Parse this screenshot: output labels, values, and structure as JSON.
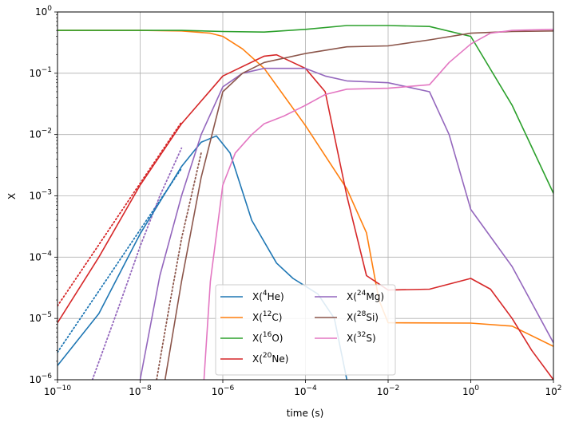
{
  "chart_data": {
    "type": "line",
    "xlabel": "time (s)",
    "ylabel": "X",
    "xscale": "log",
    "yscale": "log",
    "xlim": [
      1e-10,
      100
    ],
    "ylim": [
      1e-06,
      1
    ],
    "grid": true,
    "legend": {
      "placement": "lower center",
      "columns": 2
    },
    "x_ticks": [
      {
        "value": 1e-10,
        "base": "10",
        "exp": "−10"
      },
      {
        "value": 1e-08,
        "base": "10",
        "exp": "−8"
      },
      {
        "value": 1e-06,
        "base": "10",
        "exp": "−6"
      },
      {
        "value": 0.0001,
        "base": "10",
        "exp": "−4"
      },
      {
        "value": 0.01,
        "base": "10",
        "exp": "−2"
      },
      {
        "value": 1,
        "base": "10",
        "exp": "0"
      },
      {
        "value": 100,
        "base": "10",
        "exp": "2"
      }
    ],
    "y_ticks": [
      {
        "value": 1e-06,
        "base": "10",
        "exp": "−6"
      },
      {
        "value": 1e-05,
        "base": "10",
        "exp": "−5"
      },
      {
        "value": 0.0001,
        "base": "10",
        "exp": "−4"
      },
      {
        "value": 0.001,
        "base": "10",
        "exp": "−3"
      },
      {
        "value": 0.01,
        "base": "10",
        "exp": "−2"
      },
      {
        "value": 0.1,
        "base": "10",
        "exp": "−1"
      },
      {
        "value": 1,
        "base": "10",
        "exp": "0"
      }
    ],
    "series": [
      {
        "name": "X(4He)",
        "legend_pre": "X(",
        "legend_sup": "4",
        "legend_post": "He)",
        "color": "#1f77b4",
        "x": [
          1e-10,
          1e-09,
          1e-08,
          1e-07,
          3e-07,
          7e-07,
          1.5e-06,
          5e-06,
          2e-05,
          5e-05,
          0.0002,
          0.0005,
          0.001
        ],
        "y": [
          1.7e-06,
          1.2e-05,
          0.00024,
          0.003,
          0.0075,
          0.0095,
          0.005,
          0.0004,
          8e-05,
          4.5e-05,
          2.5e-05,
          1e-05,
          1e-06
        ]
      },
      {
        "name": "X(12C)",
        "legend_pre": "X(",
        "legend_sup": "12",
        "legend_post": "C)",
        "color": "#ff7f0e",
        "x": [
          1e-10,
          1e-08,
          1e-07,
          5e-07,
          1e-06,
          3e-06,
          1e-05,
          0.0001,
          0.001,
          0.003,
          0.006,
          0.01,
          1,
          10,
          100
        ],
        "y": [
          0.5,
          0.5,
          0.49,
          0.45,
          0.4,
          0.25,
          0.12,
          0.014,
          0.0013,
          0.00025,
          2e-05,
          8.5e-06,
          8.4e-06,
          7.5e-06,
          3.5e-06
        ]
      },
      {
        "name": "X(16O)",
        "legend_pre": "X(",
        "legend_sup": "16",
        "legend_post": "O)",
        "color": "#2ca02c",
        "x": [
          1e-10,
          1e-07,
          1e-06,
          1e-05,
          0.0001,
          0.001,
          0.01,
          0.1,
          1,
          10,
          100
        ],
        "y": [
          0.5,
          0.5,
          0.48,
          0.47,
          0.52,
          0.6,
          0.6,
          0.58,
          0.4,
          0.03,
          0.0011
        ]
      },
      {
        "name": "X(20Ne)",
        "legend_pre": "X(",
        "legend_sup": "20",
        "legend_post": "Ne)",
        "color": "#d62728",
        "x": [
          1e-10,
          1e-09,
          1e-08,
          1e-07,
          1e-06,
          1e-05,
          2e-05,
          0.0001,
          0.0003,
          0.001,
          0.003,
          0.01,
          0.1,
          1,
          3,
          10,
          30,
          100
        ],
        "y": [
          8.5e-06,
          0.0001,
          0.0015,
          0.015,
          0.09,
          0.19,
          0.2,
          0.12,
          0.05,
          0.001,
          5e-05,
          2.9e-05,
          3e-05,
          4.5e-05,
          3e-05,
          1e-05,
          3e-06,
          1e-06
        ]
      },
      {
        "name": "X(24Mg)",
        "legend_pre": "X(",
        "legend_sup": "24",
        "legend_post": "Mg)",
        "color": "#9467bd",
        "x": [
          1e-08,
          3e-08,
          1e-07,
          3e-07,
          1e-06,
          3e-06,
          1e-05,
          0.0001,
          0.0003,
          0.001,
          0.01,
          0.1,
          0.3,
          1,
          10,
          100
        ],
        "y": [
          1e-06,
          5e-05,
          0.001,
          0.01,
          0.06,
          0.1,
          0.12,
          0.12,
          0.09,
          0.075,
          0.07,
          0.05,
          0.01,
          0.0006,
          7e-05,
          4e-06
        ]
      },
      {
        "name": "X(28Si)",
        "legend_pre": "X(",
        "legend_sup": "28",
        "legend_post": "Si)",
        "color": "#8c564b",
        "x": [
          4e-08,
          1e-07,
          3e-07,
          1e-06,
          3e-06,
          1e-05,
          0.0001,
          0.001,
          0.01,
          0.1,
          1,
          10,
          100
        ],
        "y": [
          1e-06,
          4e-05,
          0.002,
          0.05,
          0.1,
          0.15,
          0.21,
          0.27,
          0.28,
          0.35,
          0.45,
          0.48,
          0.49
        ]
      },
      {
        "name": "X(32S)",
        "legend_pre": "X(",
        "legend_sup": "32",
        "legend_post": "S)",
        "color": "#e377c2",
        "x": [
          3.5e-07,
          5e-07,
          1e-06,
          2e-06,
          5e-06,
          1e-05,
          3e-05,
          0.0001,
          0.0003,
          0.001,
          0.01,
          0.1,
          0.3,
          1,
          3,
          10,
          100
        ],
        "y": [
          1e-06,
          4e-05,
          0.0015,
          0.005,
          0.01,
          0.015,
          0.02,
          0.03,
          0.045,
          0.055,
          0.057,
          0.065,
          0.15,
          0.3,
          0.45,
          0.5,
          0.52
        ]
      }
    ],
    "dotted_series": [
      {
        "color": "#d62728",
        "x": [
          1e-10,
          1e-09,
          1e-08,
          1e-07
        ],
        "y": [
          1.6e-05,
          0.00016,
          0.0016,
          0.016
        ]
      },
      {
        "color": "#1f77b4",
        "x": [
          1e-10,
          1e-09,
          1e-08,
          1e-07
        ],
        "y": [
          2.8e-06,
          2.8e-05,
          0.00028,
          0.0028
        ]
      },
      {
        "color": "#9467bd",
        "x": [
          7e-10,
          3e-09,
          1e-08,
          3e-08,
          1e-07
        ],
        "y": [
          1e-06,
          1.5e-05,
          0.00015,
          0.001,
          0.006
        ]
      },
      {
        "color": "#8c564b",
        "x": [
          2.5e-08,
          5e-08,
          1e-07,
          3e-07
        ],
        "y": [
          1e-06,
          1.5e-05,
          0.0002,
          0.005
        ]
      }
    ]
  }
}
